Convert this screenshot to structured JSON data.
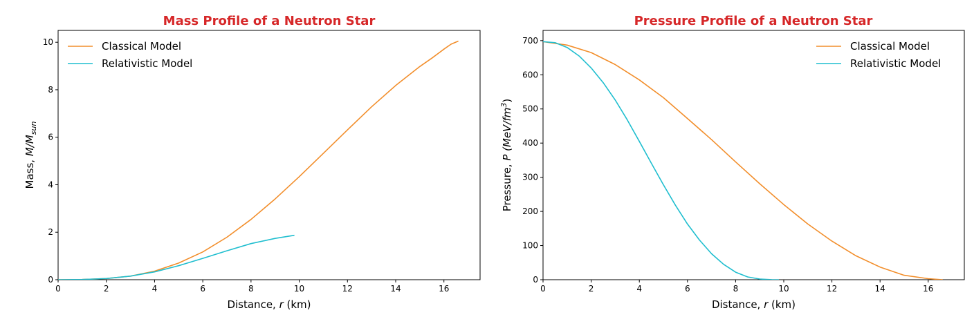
{
  "colors": {
    "title": "#d62728",
    "classical": "#f28e2b",
    "relativistic": "#1fbecf"
  },
  "chart_data": [
    {
      "type": "line",
      "title": "Mass Profile of a Neutron Star",
      "xlabel": {
        "prefix": "Distance, ",
        "var": "r",
        "suffix": " (km)"
      },
      "ylabel": {
        "prefix": "Mass, ",
        "var": "M/M",
        "sub": "sun",
        "suffix": ""
      },
      "xlim": [
        0,
        17.5
      ],
      "ylim": [
        0,
        10.5
      ],
      "xticks": [
        0,
        2,
        4,
        6,
        8,
        10,
        12,
        14,
        16
      ],
      "yticks": [
        0,
        2,
        4,
        6,
        8,
        10
      ],
      "grid": false,
      "legend_position": "upper left",
      "series": [
        {
          "name": "Classical Model",
          "color_key": "classical",
          "x": [
            0,
            1,
            2,
            3,
            4,
            5,
            6,
            7,
            8,
            9,
            10,
            11,
            12,
            13,
            14,
            15,
            15.5,
            16,
            16.3,
            16.6
          ],
          "y": [
            0,
            0.01,
            0.05,
            0.15,
            0.36,
            0.7,
            1.17,
            1.79,
            2.54,
            3.4,
            4.34,
            5.32,
            6.31,
            7.28,
            8.18,
            8.98,
            9.33,
            9.71,
            9.92,
            10.05
          ]
        },
        {
          "name": "Relativistic Model",
          "color_key": "relativistic",
          "x": [
            0,
            1,
            2,
            3,
            4,
            5,
            6,
            7,
            8,
            9,
            9.8
          ],
          "y": [
            0,
            0.01,
            0.05,
            0.15,
            0.33,
            0.59,
            0.9,
            1.22,
            1.52,
            1.74,
            1.87
          ]
        }
      ]
    },
    {
      "type": "line",
      "title": "Pressure Profile of a Neutron Star",
      "xlabel": {
        "prefix": "Distance, ",
        "var": "r",
        "suffix": " (km)"
      },
      "ylabel": {
        "prefix": "Pressure, ",
        "var": "P (MeV/fm",
        "sup": "3",
        "suffix": ")"
      },
      "xlim": [
        0,
        17.5
      ],
      "ylim": [
        0,
        730
      ],
      "xticks": [
        0,
        2,
        4,
        6,
        8,
        10,
        12,
        14,
        16
      ],
      "yticks": [
        0,
        100,
        200,
        300,
        400,
        500,
        600,
        700
      ],
      "grid": false,
      "legend_position": "upper right",
      "series": [
        {
          "name": "Classical Model",
          "color_key": "classical",
          "x": [
            0,
            1,
            2,
            3,
            4,
            5,
            6,
            7,
            8,
            9,
            10,
            11,
            12,
            13,
            14,
            15,
            16,
            16.6
          ],
          "y": [
            697,
            687,
            665,
            630,
            585,
            533,
            472,
            410,
            345,
            281,
            220,
            163,
            113,
            70,
            37,
            13,
            3,
            0
          ]
        },
        {
          "name": "Relativistic Model",
          "color_key": "relativistic",
          "x": [
            0,
            0.5,
            1,
            1.5,
            2,
            2.5,
            3,
            3.5,
            4,
            4.5,
            5,
            5.5,
            6,
            6.5,
            7,
            7.5,
            8,
            8.5,
            9,
            9.5,
            9.8
          ],
          "y": [
            697,
            694,
            680,
            655,
            620,
            577,
            526,
            468,
            405,
            341,
            278,
            218,
            163,
            116,
            76,
            45,
            22,
            8,
            2,
            0.3,
            0
          ]
        }
      ]
    }
  ]
}
